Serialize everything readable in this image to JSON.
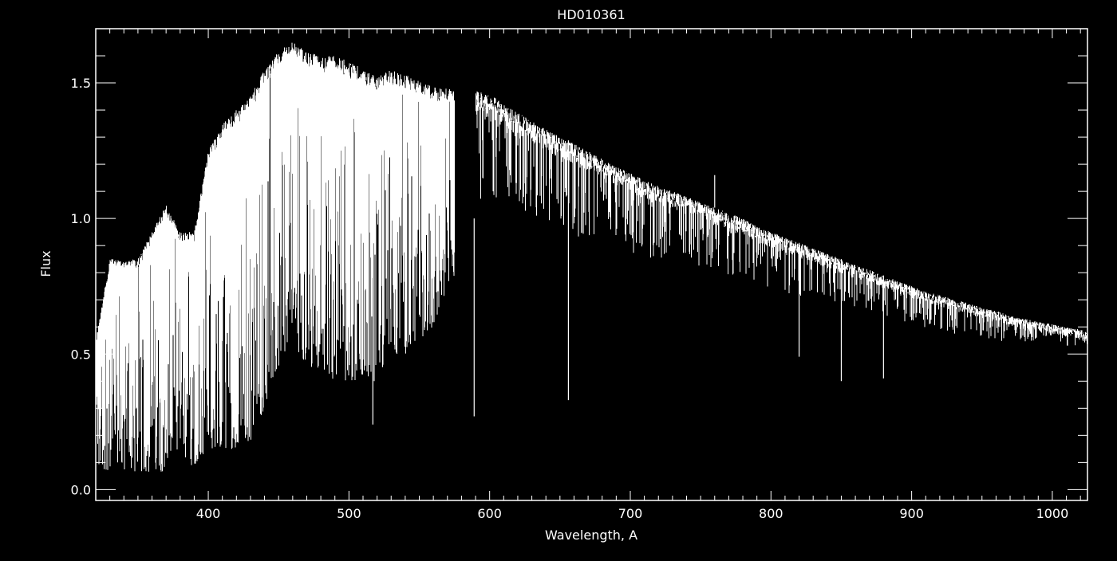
{
  "chart_data": {
    "type": "line",
    "title": "HD010361",
    "xlabel": "Wavelength, A",
    "ylabel": "Flux",
    "xlim": [
      320,
      1025
    ],
    "ylim": [
      -0.04,
      1.7
    ],
    "grid": false,
    "background": "#000000",
    "line_color": "#ffffff",
    "x_ticks": [
      400,
      500,
      600,
      700,
      800,
      900,
      1000
    ],
    "x_tick_labels": [
      "400",
      "500",
      "600",
      "700",
      "800",
      "900",
      "1000"
    ],
    "y_ticks": [
      0.0,
      0.5,
      1.0,
      1.5
    ],
    "y_tick_labels": [
      "0.0",
      "0.5",
      "1.0",
      "1.5"
    ],
    "series": [
      {
        "role": "continuum-upper-envelope",
        "x": [
          320,
          330,
          340,
          350,
          360,
          370,
          380,
          390,
          400,
          410,
          420,
          430,
          440,
          450,
          460,
          470,
          480,
          490,
          500,
          510,
          520,
          530,
          540,
          550,
          560,
          570,
          575,
          585,
          590,
          600,
          610,
          620,
          630,
          640,
          650,
          660,
          670,
          680,
          690,
          700,
          710,
          720,
          730,
          740,
          750,
          760,
          770,
          780,
          790,
          800,
          810,
          820,
          830,
          840,
          850,
          853,
          870,
          880,
          890,
          900,
          910,
          920,
          930,
          940,
          950,
          960,
          970,
          980,
          990,
          1000,
          1010,
          1020,
          1025
        ],
        "y": [
          0.55,
          0.85,
          0.85,
          0.85,
          0.95,
          1.05,
          0.95,
          0.95,
          1.25,
          1.35,
          1.4,
          1.45,
          1.55,
          1.62,
          1.65,
          1.62,
          1.6,
          1.6,
          1.58,
          1.55,
          1.52,
          1.55,
          1.53,
          1.51,
          1.49,
          1.48,
          1.48,
          null,
          1.47,
          1.46,
          1.42,
          1.39,
          1.36,
          1.33,
          1.3,
          1.28,
          1.25,
          1.22,
          1.19,
          1.17,
          1.14,
          1.12,
          1.1,
          1.08,
          1.06,
          1.04,
          1.02,
          1.0,
          0.97,
          0.95,
          0.93,
          0.91,
          0.89,
          0.87,
          0.85,
          0.84,
          0.81,
          0.79,
          0.77,
          0.75,
          0.73,
          0.72,
          0.7,
          0.69,
          0.67,
          0.66,
          0.64,
          0.63,
          0.62,
          0.61,
          0.6,
          0.59,
          0.58
        ]
      },
      {
        "role": "absorption-lower-envelope",
        "x": [
          320,
          330,
          340,
          350,
          360,
          370,
          380,
          390,
          400,
          410,
          420,
          430,
          440,
          450,
          460,
          470,
          480,
          490,
          500,
          510,
          520,
          530,
          540,
          550,
          560,
          570,
          590,
          600,
          650,
          700,
          750,
          800,
          850,
          870,
          900,
          950,
          1000,
          1025
        ],
        "y": [
          0.08,
          0.07,
          0.07,
          0.06,
          0.06,
          0.07,
          0.08,
          0.09,
          0.15,
          0.15,
          0.15,
          0.18,
          0.3,
          0.45,
          0.55,
          0.45,
          0.45,
          0.4,
          0.4,
          0.4,
          0.4,
          0.5,
          0.5,
          0.55,
          0.6,
          0.75,
          0.9,
          0.9,
          0.8,
          0.75,
          0.7,
          0.65,
          0.6,
          0.6,
          0.55,
          0.5,
          0.5,
          0.5
        ]
      }
    ],
    "strong_lines": [
      {
        "x": 517,
        "y": 0.24
      },
      {
        "x": 589,
        "y": 0.27
      },
      {
        "x": 656,
        "y": 0.33
      },
      {
        "x": 820,
        "y": 0.49
      },
      {
        "x": 850,
        "y": 0.4
      },
      {
        "x": 880,
        "y": 0.41
      },
      {
        "x": 760,
        "y": 1.16
      }
    ]
  }
}
